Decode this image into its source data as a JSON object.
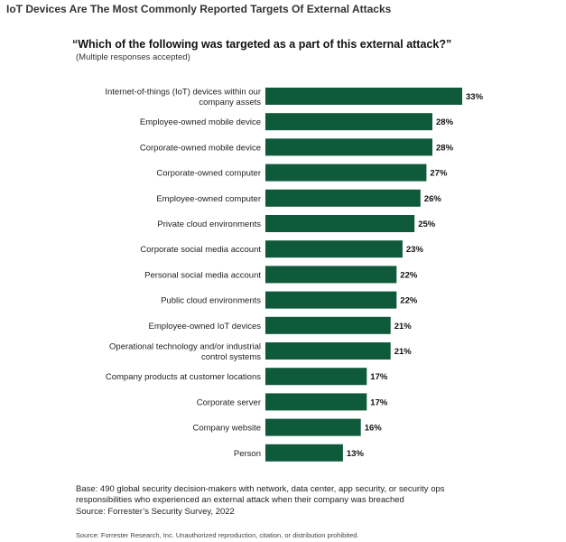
{
  "header": {
    "title": "IoT Devices Are The Most Commonly Reported Targets Of External Attacks",
    "question": "“Which of the following was targeted as a part of this external attack?”",
    "subnote": "(Multiple responses accepted)"
  },
  "chart_data": {
    "type": "bar",
    "orientation": "horizontal",
    "title": "“Which of the following was targeted as a part of this external attack?”",
    "categories": [
      [
        "Internet-of-things (IoT) devices within our",
        "company assets"
      ],
      [
        "Employee-owned mobile device"
      ],
      [
        "Corporate-owned mobile device"
      ],
      [
        "Corporate-owned computer"
      ],
      [
        "Employee-owned computer"
      ],
      [
        "Private cloud environments"
      ],
      [
        "Corporate social media account"
      ],
      [
        "Personal social media account"
      ],
      [
        "Public cloud environments"
      ],
      [
        "Employee-owned IoT devices"
      ],
      [
        "Operational technology and/or industrial",
        "control systems"
      ],
      [
        "Company products at customer locations"
      ],
      [
        "Corporate server"
      ],
      [
        "Company website"
      ],
      [
        "Person"
      ]
    ],
    "values": [
      33,
      28,
      28,
      27,
      26,
      25,
      23,
      22,
      22,
      21,
      21,
      17,
      17,
      16,
      13
    ],
    "value_labels": [
      "33%",
      "28%",
      "28%",
      "27%",
      "26%",
      "25%",
      "23%",
      "22%",
      "22%",
      "21%",
      "21%",
      "17%",
      "17%",
      "16%",
      "13%"
    ],
    "xlim": [
      0,
      33
    ],
    "bar_color": "#0e5a3b",
    "grid": false,
    "legend": "none"
  },
  "footnotes": {
    "base_line1": "Base: 490 global security decision-makers with network, data center, app security, or security ops",
    "base_line2": "responsibilities who experienced an external attack when their company was breached",
    "survey": "Source: Forrester’s Security Survey, 2022",
    "source": "Source: Forrester Research, Inc. Unauthorized reproduction, citation, or distribution prohibited."
  }
}
